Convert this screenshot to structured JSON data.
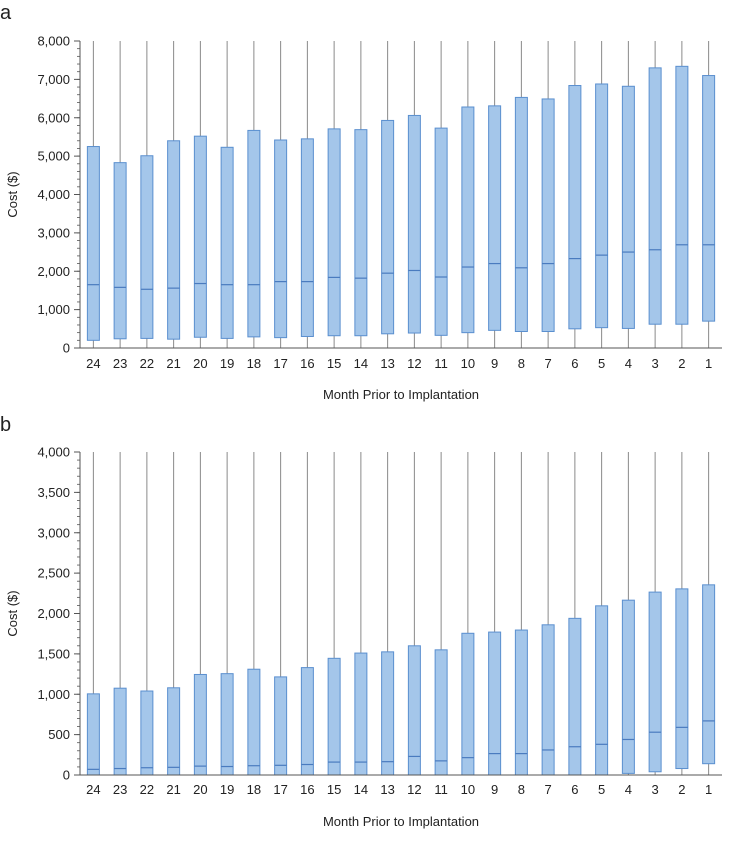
{
  "chart_data": [
    {
      "panel_label": "a",
      "type": "boxplot",
      "xlabel": "Month Prior to Implantation",
      "ylabel": "Cost ($)",
      "ylim": [
        0,
        8000
      ],
      "yticks": [
        0,
        1000,
        2000,
        3000,
        4000,
        5000,
        6000,
        7000,
        8000
      ],
      "ytick_labels": [
        "0",
        "1,000",
        "2,000",
        "3,000",
        "4,000",
        "5,000",
        "6,000",
        "7,000",
        "8,000"
      ],
      "categories": [
        "24",
        "23",
        "22",
        "21",
        "20",
        "19",
        "18",
        "17",
        "16",
        "15",
        "14",
        "13",
        "12",
        "11",
        "10",
        "9",
        "8",
        "7",
        "6",
        "5",
        "4",
        "3",
        "2",
        "1"
      ],
      "q1": [
        200,
        240,
        250,
        230,
        280,
        250,
        290,
        270,
        300,
        320,
        320,
        370,
        390,
        330,
        400,
        460,
        430,
        430,
        500,
        530,
        510,
        620,
        620,
        700
      ],
      "median": [
        1650,
        1580,
        1530,
        1560,
        1680,
        1650,
        1650,
        1730,
        1730,
        1840,
        1820,
        1950,
        2020,
        1850,
        2110,
        2200,
        2090,
        2200,
        2330,
        2420,
        2500,
        2560,
        2690,
        2690
      ],
      "q3": [
        5250,
        4830,
        5010,
        5400,
        5520,
        5230,
        5670,
        5420,
        5450,
        5710,
        5690,
        5930,
        6060,
        5730,
        6280,
        6310,
        6530,
        6490,
        6840,
        6880,
        6820,
        7300,
        7340,
        7100
      ],
      "whisker_high": [
        8000,
        8000,
        8000,
        8000,
        8000,
        8000,
        8000,
        8000,
        8000,
        8000,
        8000,
        8000,
        8000,
        8000,
        8000,
        8000,
        8000,
        8000,
        8000,
        8000,
        8000,
        8000,
        8000,
        8000
      ],
      "whisker_low": [
        0,
        0,
        0,
        0,
        0,
        0,
        0,
        0,
        0,
        0,
        0,
        0,
        0,
        0,
        0,
        0,
        0,
        0,
        0,
        0,
        0,
        0,
        0,
        0
      ]
    },
    {
      "panel_label": "b",
      "type": "boxplot",
      "xlabel": "Month Prior to Implantation",
      "ylabel": "Cost ($)",
      "ylim": [
        0,
        4000
      ],
      "yticks": [
        0,
        500,
        1000,
        1500,
        2000,
        2500,
        3000,
        3500,
        4000
      ],
      "ytick_labels": [
        "0",
        "500",
        "1,000",
        "1,500",
        "2,000",
        "2,500",
        "3,000",
        "3,500",
        "4,000"
      ],
      "categories": [
        "24",
        "23",
        "22",
        "21",
        "20",
        "19",
        "18",
        "17",
        "16",
        "15",
        "14",
        "13",
        "12",
        "11",
        "10",
        "9",
        "8",
        "7",
        "6",
        "5",
        "4",
        "3",
        "2",
        "1"
      ],
      "q1": [
        0,
        0,
        0,
        0,
        0,
        0,
        0,
        0,
        0,
        0,
        0,
        0,
        0,
        0,
        0,
        0,
        0,
        0,
        0,
        0,
        20,
        40,
        80,
        140
      ],
      "median": [
        70,
        80,
        90,
        95,
        110,
        105,
        115,
        120,
        130,
        160,
        160,
        165,
        230,
        175,
        215,
        265,
        265,
        310,
        350,
        380,
        440,
        530,
        590,
        670
      ],
      "q3": [
        1005,
        1075,
        1040,
        1080,
        1245,
        1255,
        1310,
        1215,
        1330,
        1445,
        1510,
        1525,
        1600,
        1550,
        1755,
        1770,
        1795,
        1860,
        1940,
        2095,
        2165,
        2265,
        2305,
        2355
      ],
      "whisker_high": [
        4000,
        4000,
        4000,
        4000,
        4000,
        4000,
        4000,
        4000,
        4000,
        4000,
        4000,
        4000,
        4000,
        4000,
        4000,
        4000,
        4000,
        4000,
        4000,
        4000,
        4000,
        4000,
        4000,
        4000
      ],
      "whisker_low": [
        0,
        0,
        0,
        0,
        0,
        0,
        0,
        0,
        0,
        0,
        0,
        0,
        0,
        0,
        0,
        0,
        0,
        0,
        0,
        0,
        0,
        0,
        0,
        0
      ]
    }
  ],
  "colors": {
    "box_fill": "#a4c6ea",
    "box_stroke": "#5a8fcf",
    "median_line": "#4a7bbf",
    "whisker": "#8a8a8a",
    "axis": "#555555",
    "text": "#222222"
  }
}
